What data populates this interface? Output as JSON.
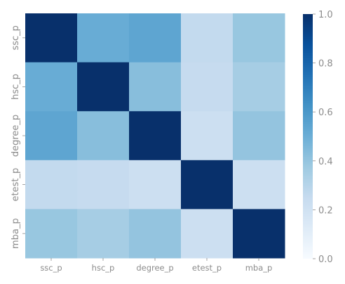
{
  "chart_data": {
    "type": "heatmap",
    "title": "",
    "xlabel": "",
    "ylabel": "",
    "x_categories": [
      "ssc_p",
      "hsc_p",
      "degree_p",
      "etest_p",
      "mba_p"
    ],
    "y_categories": [
      "ssc_p",
      "hsc_p",
      "degree_p",
      "etest_p",
      "mba_p"
    ],
    "values": [
      [
        1.0,
        0.51,
        0.54,
        0.26,
        0.39
      ],
      [
        0.51,
        1.0,
        0.43,
        0.25,
        0.35
      ],
      [
        0.54,
        0.43,
        1.0,
        0.22,
        0.4
      ],
      [
        0.26,
        0.25,
        0.22,
        1.0,
        0.22
      ],
      [
        0.39,
        0.35,
        0.4,
        0.22,
        1.0
      ]
    ],
    "vmin": 0.0,
    "vmax": 1.0,
    "colormap": "Blues",
    "colorbar": {
      "ticks": [
        0.0,
        0.2,
        0.4,
        0.6,
        0.8,
        1.0
      ],
      "tick_labels": [
        "0.0",
        "0.2",
        "0.4",
        "0.6",
        "0.8",
        "1.0"
      ]
    },
    "tick_color": "#8c8c8c"
  }
}
